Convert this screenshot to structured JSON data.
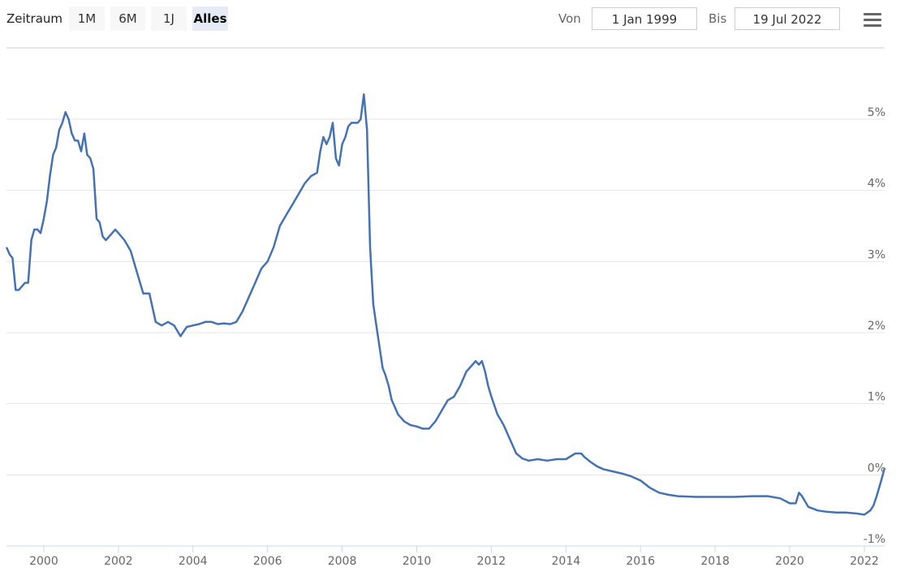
{
  "toolbar": {
    "zoom_label": "Zeitraum",
    "buttons": [
      {
        "label": "1M",
        "active": false
      },
      {
        "label": "6M",
        "active": false
      },
      {
        "label": "1J",
        "active": false
      },
      {
        "label": "Alles",
        "active": true
      }
    ],
    "from_label": "Von",
    "from_value": "1 Jan 1999",
    "to_label": "Bis",
    "to_value": "19 Jul 2022",
    "menu_icon": "hamburger-menu-icon"
  },
  "chart_data": {
    "type": "line",
    "title": "",
    "xlabel": "",
    "ylabel": "",
    "xlim": [
      "1999-01-01",
      "2022-07-19"
    ],
    "ylim": [
      -1,
      5
    ],
    "x_ticks": [
      "2000",
      "2002",
      "2004",
      "2006",
      "2008",
      "2010",
      "2012",
      "2014",
      "2016",
      "2018",
      "2020",
      "2022"
    ],
    "y_ticks": [
      "-1%",
      "0%",
      "1%",
      "2%",
      "3%",
      "4%",
      "5%"
    ],
    "grid": "horizontal",
    "y_axis_position": "right",
    "line_color": "#4472b4",
    "series": [
      {
        "x": [
          "1999-01-01",
          "1999-02-01",
          "1999-03-01",
          "1999-04-01",
          "1999-05-01",
          "1999-06-01",
          "1999-07-01",
          "1999-08-01",
          "1999-09-01",
          "1999-10-01",
          "1999-11-01",
          "1999-12-01",
          "2000-01-01",
          "2000-02-01",
          "2000-03-01",
          "2000-04-01",
          "2000-05-01",
          "2000-06-01",
          "2000-07-01",
          "2000-08-01",
          "2000-09-01",
          "2000-10-01",
          "2000-11-01",
          "2000-12-01",
          "2001-01-01",
          "2001-02-01",
          "2001-03-01",
          "2001-04-01",
          "2001-05-01",
          "2001-06-01",
          "2001-07-01",
          "2001-08-01",
          "2001-09-01",
          "2001-10-01",
          "2001-11-01",
          "2001-12-01",
          "2002-01-01",
          "2002-03-01",
          "2002-05-01",
          "2002-07-01",
          "2002-09-01",
          "2002-11-01",
          "2003-01-01",
          "2003-03-01",
          "2003-05-01",
          "2003-07-01",
          "2003-09-01",
          "2003-11-01",
          "2004-01-01",
          "2004-03-01",
          "2004-05-01",
          "2004-07-01",
          "2004-09-01",
          "2004-11-01",
          "2005-01-01",
          "2005-03-01",
          "2005-05-01",
          "2005-07-01",
          "2005-09-01",
          "2005-11-01",
          "2006-01-01",
          "2006-03-01",
          "2006-05-01",
          "2006-07-01",
          "2006-09-01",
          "2006-11-01",
          "2007-01-01",
          "2007-03-01",
          "2007-05-01",
          "2007-06-01",
          "2007-07-01",
          "2007-08-01",
          "2007-09-01",
          "2007-10-01",
          "2007-11-01",
          "2007-12-01",
          "2008-01-01",
          "2008-02-01",
          "2008-03-01",
          "2008-04-01",
          "2008-05-01",
          "2008-06-01",
          "2008-07-01",
          "2008-08-01",
          "2008-09-01",
          "2008-10-01",
          "2008-11-01",
          "2008-12-01",
          "2009-01-01",
          "2009-02-01",
          "2009-03-01",
          "2009-04-01",
          "2009-05-01",
          "2009-06-01",
          "2009-07-01",
          "2009-09-01",
          "2009-11-01",
          "2010-01-01",
          "2010-03-01",
          "2010-05-01",
          "2010-07-01",
          "2010-09-01",
          "2010-11-01",
          "2011-01-01",
          "2011-03-01",
          "2011-05-01",
          "2011-07-01",
          "2011-08-01",
          "2011-09-01",
          "2011-10-01",
          "2011-11-01",
          "2011-12-01",
          "2012-01-01",
          "2012-03-01",
          "2012-05-01",
          "2012-07-01",
          "2012-09-01",
          "2012-11-01",
          "2013-01-01",
          "2013-04-01",
          "2013-07-01",
          "2013-10-01",
          "2014-01-01",
          "2014-04-01",
          "2014-06-01",
          "2014-07-01",
          "2014-09-01",
          "2014-11-01",
          "2015-01-01",
          "2015-04-01",
          "2015-07-01",
          "2015-10-01",
          "2016-01-01",
          "2016-04-01",
          "2016-07-01",
          "2016-10-01",
          "2017-01-01",
          "2017-07-01",
          "2018-01-01",
          "2018-07-01",
          "2019-01-01",
          "2019-06-01",
          "2019-10-01",
          "2020-01-01",
          "2020-03-01",
          "2020-04-01",
          "2020-05-01",
          "2020-07-01",
          "2020-10-01",
          "2021-01-01",
          "2021-04-01",
          "2021-07-01",
          "2021-10-01",
          "2022-01-01",
          "2022-03-01",
          "2022-04-01",
          "2022-05-01",
          "2022-06-01",
          "2022-07-01",
          "2022-07-19"
        ],
        "y": [
          3.2,
          3.1,
          3.05,
          2.6,
          2.6,
          2.65,
          2.7,
          2.7,
          3.3,
          3.45,
          3.45,
          3.4,
          3.6,
          3.85,
          4.2,
          4.5,
          4.6,
          4.85,
          4.95,
          5.1,
          5.0,
          4.8,
          4.7,
          4.7,
          4.55,
          4.8,
          4.5,
          4.45,
          4.3,
          3.6,
          3.55,
          3.35,
          3.3,
          3.35,
          3.4,
          3.45,
          3.4,
          3.3,
          3.15,
          2.85,
          2.55,
          2.55,
          2.15,
          2.1,
          2.15,
          2.1,
          1.95,
          2.08,
          2.1,
          2.12,
          2.15,
          2.15,
          2.12,
          2.13,
          2.12,
          2.15,
          2.3,
          2.5,
          2.7,
          2.9,
          3.0,
          3.2,
          3.5,
          3.65,
          3.8,
          3.95,
          4.1,
          4.2,
          4.25,
          4.55,
          4.75,
          4.65,
          4.75,
          4.95,
          4.45,
          4.35,
          4.65,
          4.75,
          4.9,
          4.95,
          4.95,
          4.95,
          5.0,
          5.35,
          4.85,
          3.2,
          2.4,
          2.1,
          1.8,
          1.5,
          1.4,
          1.25,
          1.05,
          0.95,
          0.85,
          0.75,
          0.7,
          0.68,
          0.65,
          0.65,
          0.75,
          0.9,
          1.05,
          1.1,
          1.25,
          1.45,
          1.55,
          1.6,
          1.55,
          1.6,
          1.45,
          1.25,
          1.1,
          0.85,
          0.7,
          0.5,
          0.3,
          0.23,
          0.2,
          0.22,
          0.2,
          0.22,
          0.22,
          0.3,
          0.3,
          0.25,
          0.18,
          0.12,
          0.08,
          0.05,
          0.02,
          -0.02,
          -0.08,
          -0.18,
          -0.25,
          -0.28,
          -0.3,
          -0.31,
          -0.31,
          -0.31,
          -0.3,
          -0.3,
          -0.33,
          -0.4,
          -0.4,
          -0.25,
          -0.3,
          -0.45,
          -0.5,
          -0.52,
          -0.53,
          -0.53,
          -0.54,
          -0.56,
          -0.5,
          -0.43,
          -0.3,
          -0.15,
          0.0,
          0.1
        ]
      }
    ]
  }
}
